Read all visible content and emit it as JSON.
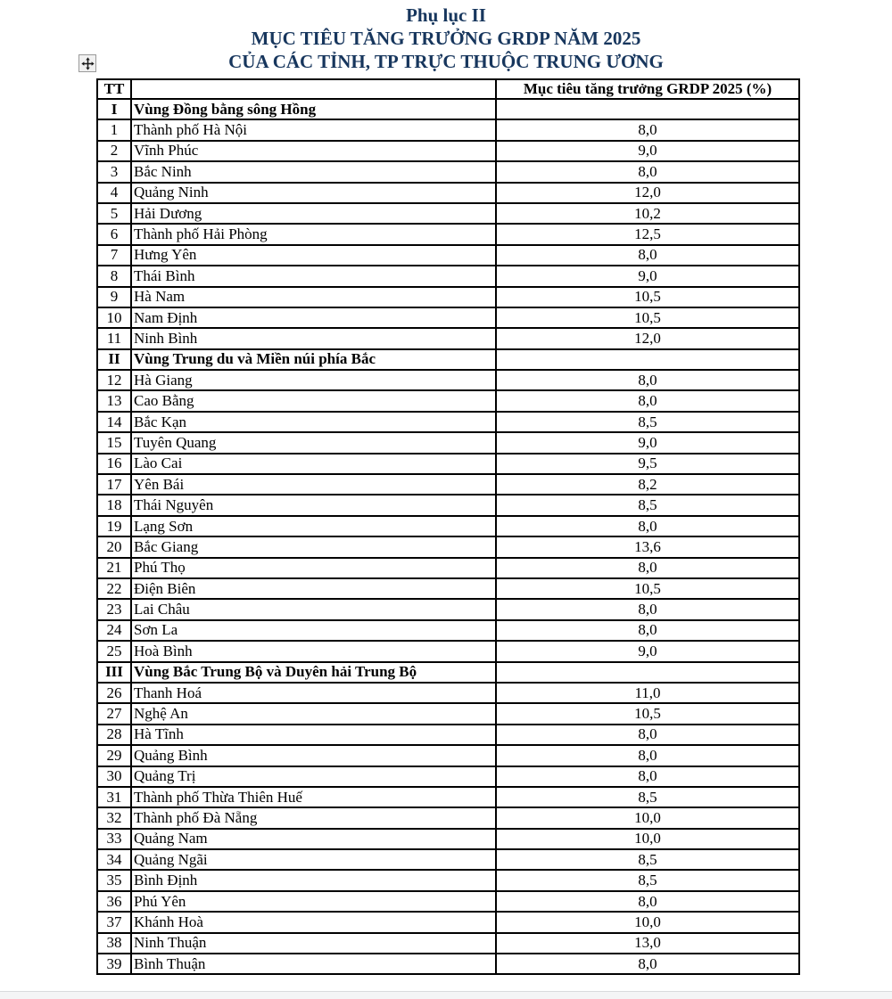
{
  "page": {
    "title_line1": "Phụ lục II",
    "title_line2": "MỤC TIÊU TĂNG TRƯỞNG GRDP NĂM 2025",
    "title_line3": "CỦA CÁC TỈNH, TP TRỰC THUỘC TRUNG ƯƠNG"
  },
  "colors": {
    "title_text": "#17365d",
    "table_text": "#000000",
    "table_border": "#000000"
  },
  "icons": {
    "table_move_handle": "four-way-move-arrow"
  },
  "table": {
    "headers": {
      "tt": "TT",
      "name": "",
      "target": "Mục tiêu tăng trưởng GRDP 2025 (%)"
    },
    "rows": [
      {
        "tt": "I",
        "name": "Vùng Đồng bằng sông Hồng",
        "value": "",
        "section": true
      },
      {
        "tt": "1",
        "name": "Thành phố Hà Nội",
        "value": "8,0"
      },
      {
        "tt": "2",
        "name": "Vĩnh Phúc",
        "value": "9,0"
      },
      {
        "tt": "3",
        "name": "Bắc Ninh",
        "value": "8,0"
      },
      {
        "tt": "4",
        "name": "Quảng Ninh",
        "value": "12,0"
      },
      {
        "tt": "5",
        "name": "Hải Dương",
        "value": "10,2"
      },
      {
        "tt": "6",
        "name": "Thành phố Hải Phòng",
        "value": "12,5"
      },
      {
        "tt": "7",
        "name": "Hưng Yên",
        "value": "8,0"
      },
      {
        "tt": "8",
        "name": "Thái Bình",
        "value": "9,0"
      },
      {
        "tt": "9",
        "name": "Hà Nam",
        "value": "10,5"
      },
      {
        "tt": "10",
        "name": "Nam Định",
        "value": "10,5"
      },
      {
        "tt": "11",
        "name": "Ninh Bình",
        "value": "12,0"
      },
      {
        "tt": "II",
        "name": "Vùng Trung du và Miền núi phía Bắc",
        "value": "",
        "section": true
      },
      {
        "tt": "12",
        "name": "Hà Giang",
        "value": "8,0"
      },
      {
        "tt": "13",
        "name": "Cao Bằng",
        "value": "8,0"
      },
      {
        "tt": "14",
        "name": "Bắc Kạn",
        "value": "8,5"
      },
      {
        "tt": "15",
        "name": "Tuyên Quang",
        "value": "9,0"
      },
      {
        "tt": "16",
        "name": "Lào Cai",
        "value": "9,5"
      },
      {
        "tt": "17",
        "name": "Yên Bái",
        "value": "8,2"
      },
      {
        "tt": "18",
        "name": "Thái Nguyên",
        "value": "8,5"
      },
      {
        "tt": "19",
        "name": "Lạng Sơn",
        "value": "8,0"
      },
      {
        "tt": "20",
        "name": "Bắc Giang",
        "value": "13,6"
      },
      {
        "tt": "21",
        "name": "Phú Thọ",
        "value": "8,0"
      },
      {
        "tt": "22",
        "name": "Điện Biên",
        "value": "10,5"
      },
      {
        "tt": "23",
        "name": "Lai Châu",
        "value": "8,0"
      },
      {
        "tt": "24",
        "name": "Sơn La",
        "value": "8,0"
      },
      {
        "tt": "25",
        "name": "Hoà Bình",
        "value": "9,0"
      },
      {
        "tt": "III",
        "name": "Vùng Bắc Trung Bộ và Duyên hải Trung Bộ",
        "value": "",
        "section": true
      },
      {
        "tt": "26",
        "name": "Thanh Hoá",
        "value": "11,0"
      },
      {
        "tt": "27",
        "name": "Nghệ An",
        "value": "10,5"
      },
      {
        "tt": "28",
        "name": "Hà Tĩnh",
        "value": "8,0"
      },
      {
        "tt": "29",
        "name": "Quảng Bình",
        "value": "8,0"
      },
      {
        "tt": "30",
        "name": "Quảng Trị",
        "value": "8,0"
      },
      {
        "tt": "31",
        "name": "Thành phố Thừa Thiên Huế",
        "value": "8,5"
      },
      {
        "tt": "32",
        "name": "Thành phố Đà Nẵng",
        "value": "10,0"
      },
      {
        "tt": "33",
        "name": "Quảng Nam",
        "value": "10,0"
      },
      {
        "tt": "34",
        "name": "Quảng Ngãi",
        "value": "8,5"
      },
      {
        "tt": "35",
        "name": "Bình Định",
        "value": "8,5"
      },
      {
        "tt": "36",
        "name": "Phú Yên",
        "value": "8,0"
      },
      {
        "tt": "37",
        "name": "Khánh Hoà",
        "value": "10,0"
      },
      {
        "tt": "38",
        "name": "Ninh Thuận",
        "value": "13,0"
      },
      {
        "tt": "39",
        "name": "Bình Thuận",
        "value": "8,0"
      }
    ]
  }
}
